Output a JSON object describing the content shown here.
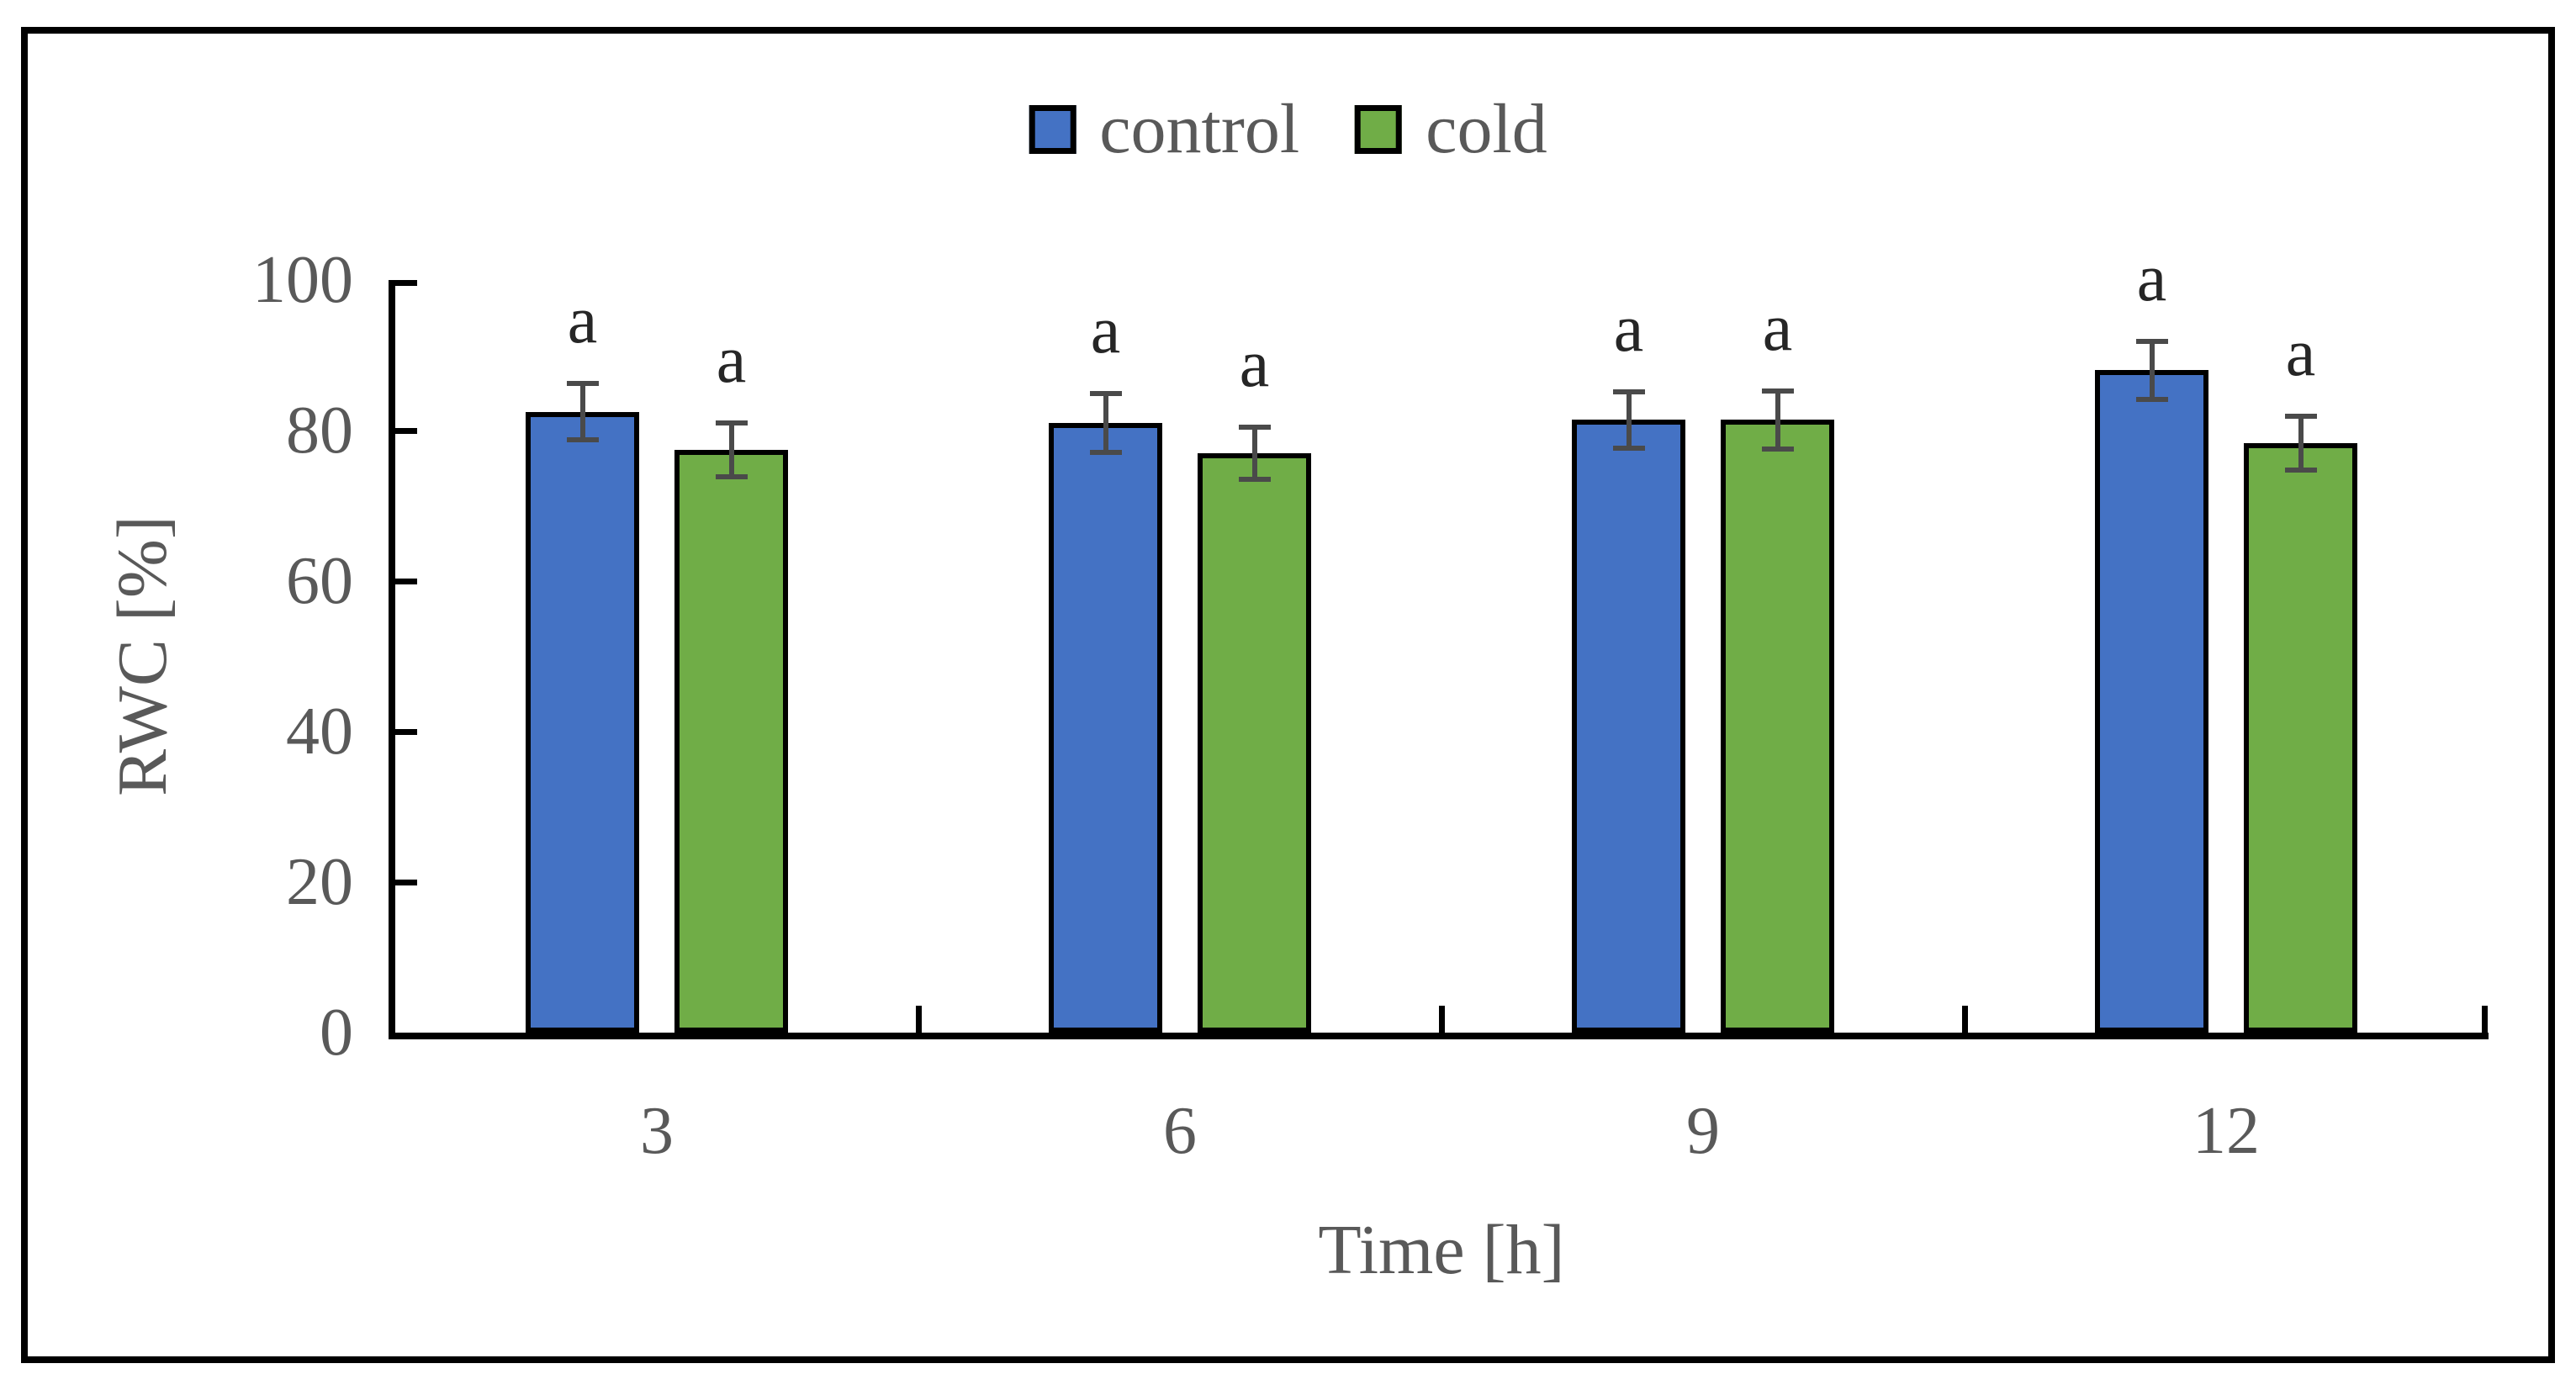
{
  "figure": {
    "kind": "grouped bar chart with error bars",
    "background": "#ffffff",
    "border_color": "#000000"
  },
  "colors": {
    "control_fill": "#4472C4",
    "cold_fill": "#70AD47",
    "bar_outline": "#000000",
    "error_bar": "#4a4a4a",
    "axis": "#000000",
    "text_gray": "#595959",
    "sig_letter": "#262626"
  },
  "legend": {
    "items": [
      {
        "label": "control",
        "color": "#4472C4"
      },
      {
        "label": "cold",
        "color": "#70AD47"
      }
    ]
  },
  "chart_data": {
    "type": "bar",
    "title": "",
    "categories": [
      "3",
      "6",
      "9",
      "12"
    ],
    "series": [
      {
        "name": "control",
        "color": "#4472C4",
        "values": [
          82.5,
          81,
          81.4,
          88
        ],
        "errors": [
          4.1,
          4.2,
          4.1,
          4.2
        ],
        "sig_labels": [
          "a",
          "a",
          "a",
          "a"
        ]
      },
      {
        "name": "cold",
        "color": "#70AD47",
        "values": [
          77.4,
          77,
          81.4,
          78.3
        ],
        "errors": [
          3.9,
          3.8,
          4.2,
          3.9
        ],
        "sig_labels": [
          "a",
          "a",
          "a",
          "a"
        ]
      }
    ],
    "xlabel": "Time [h]",
    "ylabel": "RWC [%]",
    "ylim": [
      0,
      100
    ],
    "yticks": [
      0,
      20,
      40,
      60,
      80,
      100
    ],
    "grid": false,
    "legend_position": "top-center",
    "tick_style": "inside"
  }
}
